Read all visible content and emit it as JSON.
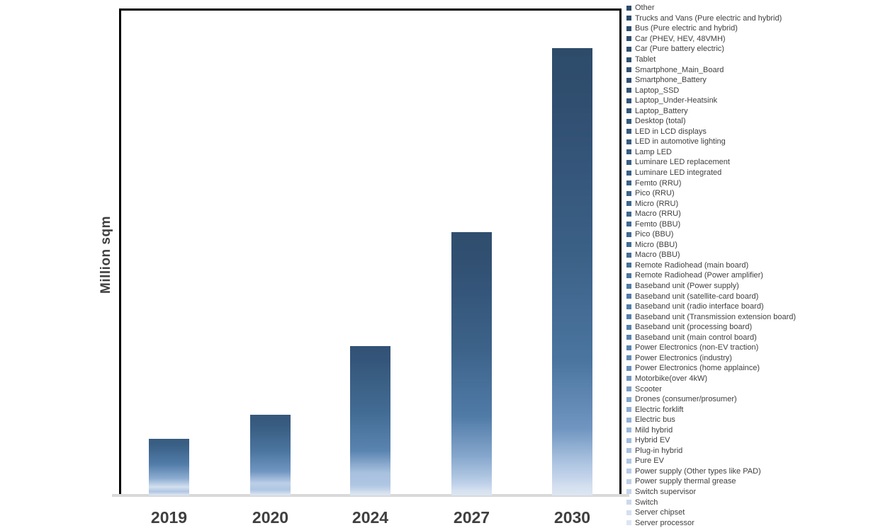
{
  "chart": {
    "ylabel": "Million sqm",
    "colors": {
      "background": "#FFFFFF",
      "plot_border": "#000000",
      "x_axis_line": "#D9D9D9",
      "axis_text": "#404040",
      "legend_text": "#404040"
    },
    "palette": [
      "#2E4B6A",
      "#2F4C6C",
      "#2F4D6D",
      "#304E6F",
      "#314F70",
      "#315072",
      "#325174",
      "#325275",
      "#335377",
      "#345579",
      "#35577B",
      "#36587C",
      "#375A7E",
      "#385C80",
      "#395D82",
      "#3A5F84",
      "#3B6086",
      "#3C6288",
      "#3D638A",
      "#3E658C",
      "#3F678E",
      "#406990",
      "#416A92",
      "#436C94",
      "#456E96",
      "#477098",
      "#4B759F",
      "#4F7AA6",
      "#507BA7",
      "#527DA9",
      "#547FAB",
      "#5680AC",
      "#5882AE",
      "#5A84B0",
      "#618AB5",
      "#688FBB",
      "#6F95C0",
      "#7A9EC6",
      "#85A6CC",
      "#8CACD1",
      "#94B1D5",
      "#9BB7DA",
      "#A2BCDD",
      "#A8C1DF",
      "#AFC6E2",
      "#B6CAE5",
      "#BCCFE7",
      "#C3D3EA",
      "#CBD9ED",
      "#D4E0EF",
      "#DCE6F2"
    ]
  },
  "chart_data": {
    "type": "bar",
    "stacked": true,
    "title": "",
    "xlabel": "",
    "ylabel": "Million sqm",
    "categories": [
      "2019",
      "2020",
      "2024",
      "2027",
      "2030"
    ],
    "totals_relative": [
      12.7,
      18.0,
      33.4,
      58.9,
      100.0
    ],
    "values_note": "Y axis shows no numeric tick labels; bar totals are estimated from pixel heights relative to the 2030 bar = 100. Stacking order runs from Server processor (lightest, bottom) up to Other (darkest, top).",
    "gridlines": false,
    "legend_position": "right",
    "series_top_to_bottom": [
      "Other",
      "Trucks and Vans (Pure electric and hybrid)",
      "Bus (Pure electric and hybrid)",
      "Car (PHEV, HEV, 48VMH)",
      "Car (Pure battery electric)",
      "Tablet",
      "Smartphone_Main_Board",
      "Smartphone_Battery",
      "Laptop_SSD",
      "Laptop_Under-Heatsink",
      "Laptop_Battery",
      "Desktop (total)",
      "LED in LCD displays",
      "LED in automotive lighting",
      "Lamp LED",
      "Luminare LED replacement",
      "Luminare LED integrated",
      "Femto (RRU)",
      "Pico (RRU)",
      "Micro (RRU)",
      "Macro (RRU)",
      "Femto (BBU)",
      "Pico (BBU)",
      "Micro (BBU)",
      "Macro (BBU)",
      "Remote Radiohead (main board)",
      "Remote Radiohead (Power amplifier)",
      "Baseband unit (Power supply)",
      "Baseband unit (satellite-card board)",
      "Baseband unit (radio interface board)",
      "Baseband unit (Transmission extension board)",
      "Baseband unit (processing board)",
      "Baseband unit (main control board)",
      "Power Electronics (non-EV traction)",
      "Power Electronics (industry)",
      "Power Electronics (home applaince)",
      "Motorbike(over 4kW)",
      "Scooter",
      "Drones (consumer/prosumer)",
      "Electric forklift",
      "Electric bus",
      "Mild hybrid",
      "Hybrid EV",
      "Plug-in hybrid",
      "Pure EV",
      "Power supply (Other types like PAD)",
      "Power supply thermal grease",
      "Switch supervisor",
      "Switch",
      "Server chipset",
      "Server processor"
    ]
  }
}
